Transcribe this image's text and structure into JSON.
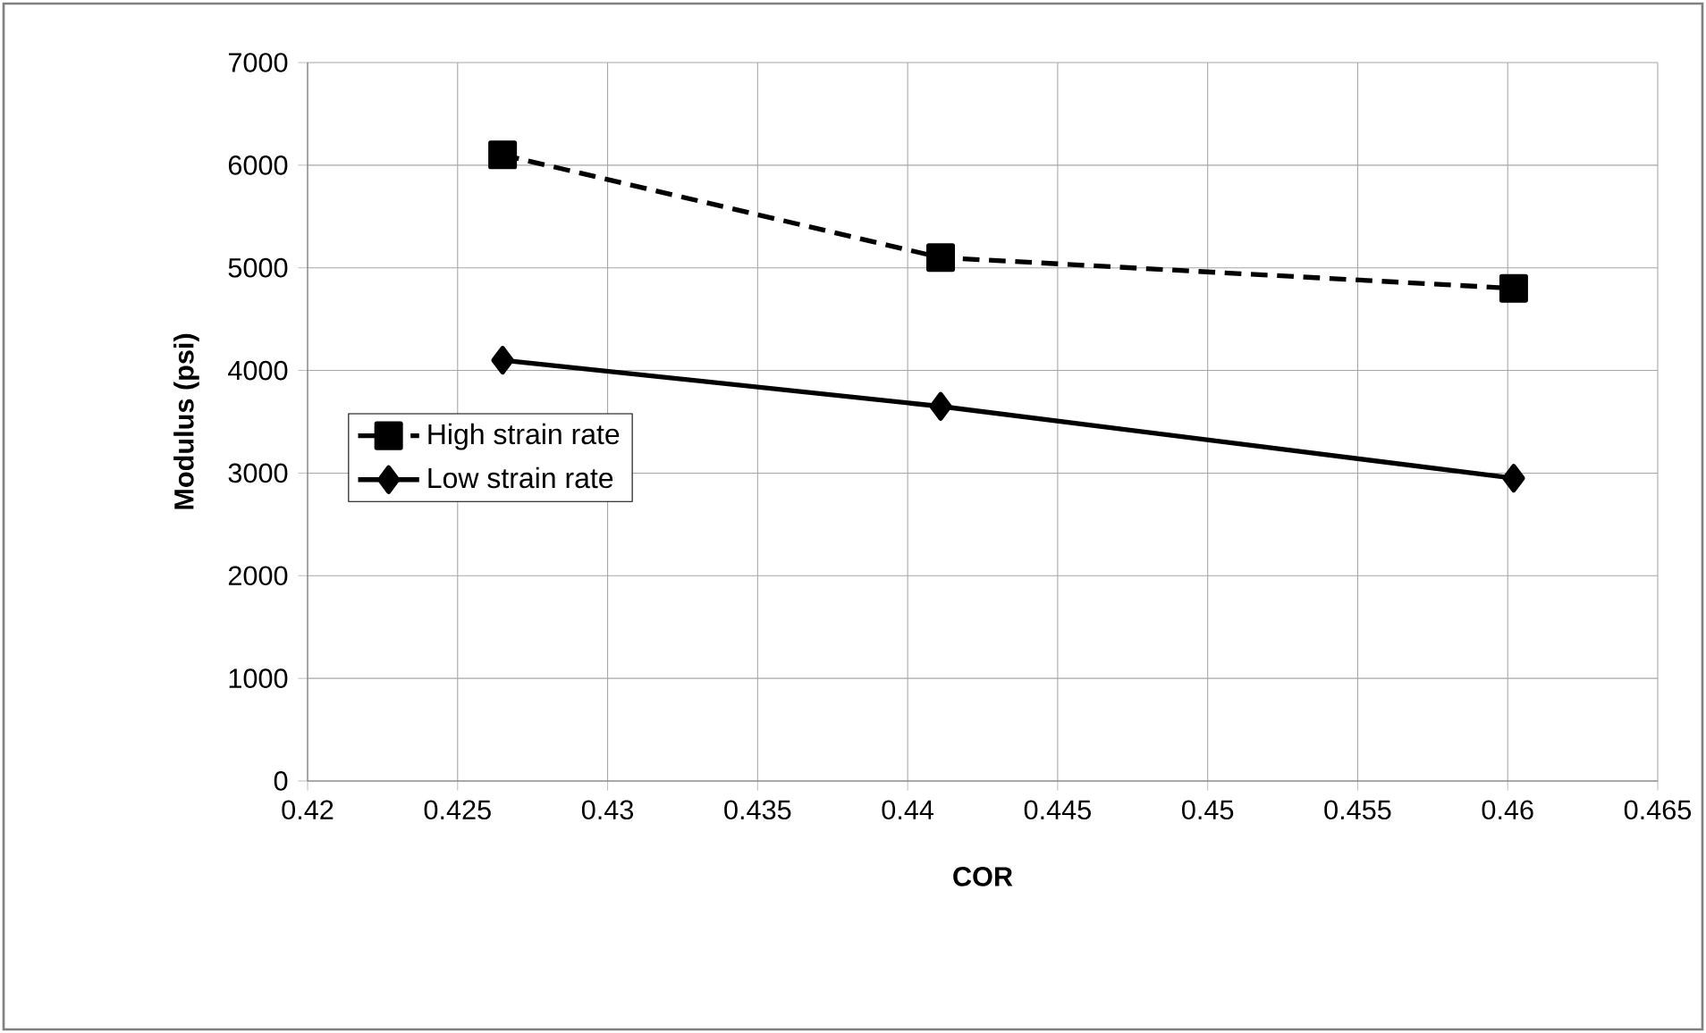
{
  "chart_data": {
    "type": "line",
    "xlabel": "COR",
    "ylabel": "Modulus (psi)",
    "series": [
      {
        "name": "High strain rate",
        "color": "#000000",
        "line_style": "dashed",
        "marker": "square",
        "x": [
          0.4265,
          0.4411,
          0.4602
        ],
        "values": [
          6100,
          5100,
          4800
        ]
      },
      {
        "name": "Low strain rate",
        "color": "#000000",
        "line_style": "solid",
        "marker": "diamond",
        "x": [
          0.4265,
          0.4411,
          0.4602
        ],
        "values": [
          4100,
          3650,
          2950
        ]
      }
    ],
    "xlim": [
      0.42,
      0.465
    ],
    "xticks": [
      0.42,
      0.425,
      0.43,
      0.435,
      0.44,
      0.445,
      0.45,
      0.455,
      0.46,
      0.465
    ],
    "ylim": [
      0,
      7000
    ],
    "yticks": [
      0,
      1000,
      2000,
      3000,
      4000,
      5000,
      6000,
      7000
    ],
    "grid": true,
    "legend": "left"
  }
}
